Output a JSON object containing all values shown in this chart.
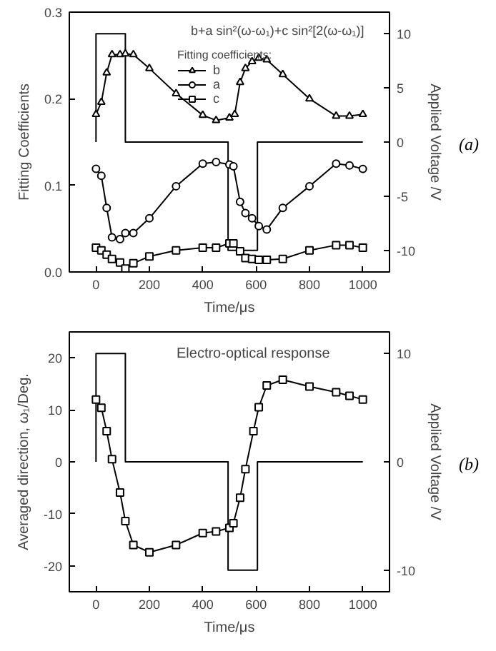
{
  "chart_data": [
    {
      "type": "line",
      "xlabel": "Time/μs",
      "ylabel": "Fitting Coefficients",
      "y2label": "Applied Voltage /V",
      "legend_title": "Fitting coefficients:",
      "legend": "top",
      "grid": false,
      "annotations": [
        "b+a sin²(ω-ω₁)+c sin²[2(ω-ω₁)]",
        "(a)"
      ],
      "xlim": [
        -100,
        1100
      ],
      "xticks": [
        0,
        200,
        400,
        600,
        800,
        1000
      ],
      "ylim": [
        0,
        0.3
      ],
      "yticks": [
        {
          "value": 0,
          "label": "0.0"
        },
        {
          "value": 0.1,
          "label": "0.1"
        },
        {
          "value": 0.2,
          "label": "0.2"
        },
        {
          "value": 0.3,
          "label": "0.3"
        }
      ],
      "y2lim": [
        -12,
        12
      ],
      "y2ticks": [
        -10,
        -5,
        0,
        5,
        10
      ],
      "series": [
        {
          "color": "#000000",
          "marker": "none",
          "axis": "y2",
          "x": [
            0,
            0,
            110,
            110,
            495,
            495,
            605,
            605,
            1000
          ],
          "values": [
            0,
            10,
            10,
            0,
            0,
            -10,
            -10,
            0,
            0
          ]
        },
        {
          "name": "b",
          "color": "#000000",
          "marker": "triangle",
          "x": [
            0,
            20,
            40,
            60,
            90,
            110,
            140,
            200,
            300,
            400,
            450,
            500,
            520,
            540,
            560,
            585,
            610,
            640,
            700,
            800,
            900,
            950,
            1000
          ],
          "values": [
            0.182,
            0.196,
            0.23,
            0.251,
            0.251,
            0.252,
            0.251,
            0.235,
            0.206,
            0.181,
            0.175,
            0.178,
            0.182,
            0.219,
            0.235,
            0.243,
            0.247,
            0.245,
            0.228,
            0.2,
            0.18,
            0.18,
            0.182
          ]
        },
        {
          "name": "a",
          "color": "#000000",
          "marker": "circle",
          "x": [
            0,
            20,
            40,
            60,
            90,
            110,
            140,
            200,
            300,
            400,
            450,
            500,
            515,
            540,
            560,
            585,
            610,
            640,
            700,
            800,
            900,
            950,
            1000
          ],
          "values": [
            0.119,
            0.111,
            0.074,
            0.04,
            0.038,
            0.045,
            0.045,
            0.062,
            0.099,
            0.125,
            0.127,
            0.124,
            0.122,
            0.081,
            0.068,
            0.062,
            0.053,
            0.049,
            0.074,
            0.099,
            0.125,
            0.123,
            0.119
          ]
        },
        {
          "name": "c",
          "color": "#000000",
          "marker": "square",
          "x": [
            0,
            20,
            40,
            60,
            90,
            110,
            140,
            200,
            300,
            400,
            450,
            500,
            515,
            540,
            560,
            585,
            610,
            640,
            700,
            800,
            900,
            950,
            1000
          ],
          "values": [
            0.028,
            0.025,
            0.02,
            0.015,
            0.011,
            0.004,
            0.01,
            0.018,
            0.025,
            0.028,
            0.028,
            0.033,
            0.033,
            0.024,
            0.016,
            0.015,
            0.014,
            0.014,
            0.015,
            0.025,
            0.031,
            0.031,
            0.028
          ]
        }
      ]
    },
    {
      "type": "line",
      "xlabel": "Time/μs",
      "ylabel": "Averaged direction, ω₁/Deg.",
      "y2label": "Applied Voltage /V",
      "grid": false,
      "annotations": [
        "Electro-optical response",
        "(b)"
      ],
      "xlim": [
        -100,
        1100
      ],
      "xticks": [
        0,
        200,
        400,
        600,
        800,
        1000
      ],
      "ylim": [
        -25,
        25
      ],
      "yticks": [
        -20,
        -10,
        0,
        10,
        20
      ],
      "y2lim": [
        -12,
        12
      ],
      "y2ticks": [
        -10,
        0,
        10
      ],
      "series": [
        {
          "color": "#000000",
          "marker": "none",
          "axis": "y2",
          "x": [
            0,
            0,
            110,
            110,
            495,
            495,
            605,
            605,
            1000
          ],
          "values": [
            0,
            10,
            10,
            0,
            0,
            -10,
            -10,
            0,
            0
          ]
        },
        {
          "color": "#000000",
          "marker": "square",
          "x": [
            0,
            20,
            40,
            60,
            90,
            110,
            140,
            200,
            300,
            400,
            450,
            500,
            515,
            540,
            560,
            590,
            610,
            640,
            700,
            800,
            900,
            950,
            1000
          ],
          "values": [
            12.0,
            10.4,
            5.9,
            0.5,
            -5.9,
            -11.4,
            -16.0,
            -17.4,
            -16.0,
            -13.7,
            -13.4,
            -12.7,
            -11.8,
            -6.9,
            -1.4,
            5.9,
            10.5,
            14.7,
            15.8,
            14.5,
            13.4,
            12.7,
            12.0
          ]
        }
      ]
    }
  ]
}
